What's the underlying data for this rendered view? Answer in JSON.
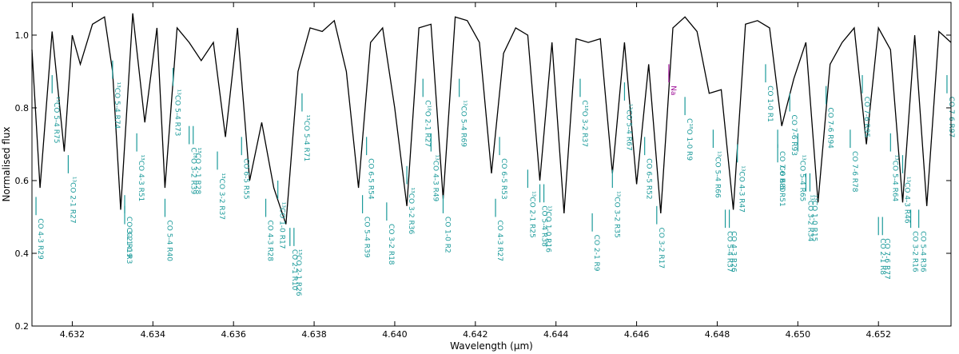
{
  "chart_data": {
    "type": "line",
    "xlabel": "Wavelength (μm)",
    "ylabel": "Normalised flux",
    "xlim": [
      4.631,
      4.6538
    ],
    "ylim": [
      0.2,
      1.09
    ],
    "xticks": [
      4.632,
      4.634,
      4.636,
      4.638,
      4.64,
      4.642,
      4.644,
      4.646,
      4.648,
      4.65,
      4.652
    ],
    "xtick_labels": [
      "4.632",
      "4.634",
      "4.636",
      "4.638",
      "4.640",
      "4.642",
      "4.644",
      "4.646",
      "4.648",
      "4.650",
      "4.652"
    ],
    "yticks": [
      0.2,
      0.4,
      0.6,
      0.8,
      1.0
    ],
    "ytick_labels": [
      "0.2",
      "0.4",
      "0.6",
      "0.8",
      "1.0"
    ],
    "colors": {
      "teal": "#1b9a9a",
      "magenta": "#a0149a",
      "spectrum": "#000000"
    },
    "series": [
      {
        "x": [
          4.631,
          4.6312,
          4.6315,
          4.6318,
          4.632,
          4.6322,
          4.6325,
          4.6328,
          4.633,
          4.6332,
          4.6335,
          4.6338,
          4.6341,
          4.6343,
          4.6346,
          4.6349,
          4.6352,
          4.6355,
          4.6358,
          4.6361,
          4.6364,
          4.6367,
          4.637,
          4.6373,
          4.6376,
          4.6379,
          4.6382,
          4.6385,
          4.6388,
          4.6391,
          4.6394,
          4.6397,
          4.64,
          4.6403,
          4.6406,
          4.6409,
          4.6412,
          4.6415,
          4.6418,
          4.6421,
          4.6424,
          4.6427,
          4.643,
          4.6433,
          4.6436,
          4.6439,
          4.6442,
          4.6445,
          4.6448,
          4.6451,
          4.6454,
          4.6457,
          4.646,
          4.6463,
          4.6466,
          4.6469,
          4.6472,
          4.6475,
          4.6478,
          4.6481,
          4.6484,
          4.6487,
          4.649,
          4.6493,
          4.6496,
          4.6499,
          4.6502,
          4.6505,
          4.6508,
          4.6511,
          4.6514,
          4.6517,
          4.652,
          4.6523,
          4.6526,
          4.6529,
          4.6532,
          4.6535,
          4.6538
        ],
        "y": [
          0.96,
          0.58,
          1.01,
          0.68,
          1.0,
          0.92,
          1.03,
          1.05,
          0.9,
          0.52,
          1.06,
          0.76,
          1.02,
          0.58,
          1.02,
          0.98,
          0.93,
          0.98,
          0.72,
          1.02,
          0.6,
          0.76,
          0.58,
          0.48,
          0.9,
          1.02,
          1.01,
          1.04,
          0.9,
          0.58,
          0.98,
          1.02,
          0.8,
          0.53,
          1.02,
          1.03,
          0.55,
          1.05,
          1.04,
          0.98,
          0.62,
          0.95,
          1.02,
          1.0,
          0.6,
          0.98,
          0.51,
          0.99,
          0.98,
          0.99,
          0.62,
          0.98,
          0.59,
          0.92,
          0.51,
          1.02,
          1.05,
          1.01,
          0.84,
          0.85,
          0.52,
          1.03,
          1.04,
          1.02,
          0.75,
          0.88,
          0.98,
          0.54,
          0.92,
          0.98,
          1.02,
          0.7,
          1.02,
          0.96,
          0.54,
          1.0,
          0.53,
          1.01,
          0.98
        ]
      }
    ],
    "annotations": [
      {
        "text": "CO 4-3 R29",
        "x": 4.6311,
        "y": 0.555,
        "color": "teal"
      },
      {
        "text": "¹³CO 5-4 R75",
        "x": 4.6315,
        "y": 0.89,
        "color": "teal"
      },
      {
        "text": "¹³CO 2-1 R27",
        "x": 4.6319,
        "y": 0.67,
        "color": "teal"
      },
      {
        "text": "¹³CO 5-4 R74",
        "x": 4.633,
        "y": 0.93,
        "color": "teal"
      },
      {
        "text": "CO 3-2 R19",
        "x": 4.6333,
        "y": 0.56,
        "color": "teal"
      },
      {
        "text": "CO 1-0 R3",
        "x": 4.6333,
        "y": 0.53,
        "color": "teal"
      },
      {
        "text": "¹³CO 4-3 R51",
        "x": 4.6336,
        "y": 0.73,
        "color": "teal"
      },
      {
        "text": "CO 5-4 R40",
        "x": 4.6343,
        "y": 0.55,
        "color": "teal"
      },
      {
        "text": "¹³CO 5-4 R73",
        "x": 4.6345,
        "y": 0.91,
        "color": "teal"
      },
      {
        "text": "C¹⁸O 3-2 R39",
        "x": 4.6349,
        "y": 0.75,
        "color": "teal"
      },
      {
        "text": "¹³CO 2-1 R28",
        "x": 4.635,
        "y": 0.75,
        "color": "teal"
      },
      {
        "text": "¹³CO 3-2 R37",
        "x": 4.6356,
        "y": 0.68,
        "color": "teal"
      },
      {
        "text": "CO 6-5 R55",
        "x": 4.6362,
        "y": 0.72,
        "color": "teal"
      },
      {
        "text": "CO 4-3 R28",
        "x": 4.6368,
        "y": 0.55,
        "color": "teal"
      },
      {
        "text": "¹³CO 1-0 R17",
        "x": 4.6371,
        "y": 0.6,
        "color": "teal"
      },
      {
        "text": "CO 2-1 R10",
        "x": 4.6374,
        "y": 0.47,
        "color": "teal"
      },
      {
        "text": "¹³CO 2-1 R26",
        "x": 4.6375,
        "y": 0.47,
        "color": "teal"
      },
      {
        "text": "¹³CO 5-4 R71",
        "x": 4.6377,
        "y": 0.84,
        "color": "teal"
      },
      {
        "text": "CO 5-4 R39",
        "x": 4.6392,
        "y": 0.56,
        "color": "teal"
      },
      {
        "text": "CO 6-5 R54",
        "x": 4.6393,
        "y": 0.72,
        "color": "teal"
      },
      {
        "text": "CO 3-2 R18",
        "x": 4.6398,
        "y": 0.54,
        "color": "teal"
      },
      {
        "text": "¹³CO 3-2 R36",
        "x": 4.6403,
        "y": 0.64,
        "color": "teal"
      },
      {
        "text": "C¹⁸O 2-1 R27",
        "x": 4.6407,
        "y": 0.88,
        "color": "teal"
      },
      {
        "text": "¹³CO 4-3 R49",
        "x": 4.6409,
        "y": 0.73,
        "color": "teal"
      },
      {
        "text": "CO 1-0 R2",
        "x": 4.6412,
        "y": 0.56,
        "color": "teal"
      },
      {
        "text": "¹³CO 5-4 R69",
        "x": 4.6416,
        "y": 0.88,
        "color": "teal"
      },
      {
        "text": "CO 4-3 R27",
        "x": 4.6425,
        "y": 0.55,
        "color": "teal"
      },
      {
        "text": "CO 6-5 R53",
        "x": 4.6426,
        "y": 0.72,
        "color": "teal"
      },
      {
        "text": "¹³CO 2-1 R25",
        "x": 4.6433,
        "y": 0.63,
        "color": "teal"
      },
      {
        "text": "CO 5-4 R38",
        "x": 4.6436,
        "y": 0.59,
        "color": "teal"
      },
      {
        "text": "¹³CO 1-0 R16",
        "x": 4.6437,
        "y": 0.59,
        "color": "teal"
      },
      {
        "text": "C¹⁸O 3-2 R37",
        "x": 4.6446,
        "y": 0.88,
        "color": "teal"
      },
      {
        "text": "CO 2-1 R9",
        "x": 4.6449,
        "y": 0.51,
        "color": "teal"
      },
      {
        "text": "¹³CO 3-2 R35",
        "x": 4.6454,
        "y": 0.63,
        "color": "teal"
      },
      {
        "text": "¹³CO 5-4 R67",
        "x": 4.6457,
        "y": 0.87,
        "color": "teal"
      },
      {
        "text": "CO 6-5 R52",
        "x": 4.6462,
        "y": 0.72,
        "color": "teal"
      },
      {
        "text": "CO 3-2 R17",
        "x": 4.6465,
        "y": 0.53,
        "color": "teal"
      },
      {
        "text": "Na",
        "x": 4.6468,
        "y": 0.92,
        "color": "magenta"
      },
      {
        "text": "C¹⁸O 1-0 R9",
        "x": 4.6472,
        "y": 0.83,
        "color": "teal"
      },
      {
        "text": "¹³CO 5-4 R66",
        "x": 4.6479,
        "y": 0.74,
        "color": "teal"
      },
      {
        "text": "CO 5-4 R37",
        "x": 4.6482,
        "y": 0.52,
        "color": "teal"
      },
      {
        "text": "CO 4-3 R26",
        "x": 4.6483,
        "y": 0.52,
        "color": "teal"
      },
      {
        "text": "¹³CO 4-3 R47",
        "x": 4.6485,
        "y": 0.7,
        "color": "teal"
      },
      {
        "text": "CO 1-0 R1",
        "x": 4.6492,
        "y": 0.92,
        "color": "teal"
      },
      {
        "text": "CO 7-6 R80",
        "x": 4.6495,
        "y": 0.74,
        "color": "teal"
      },
      {
        "text": "CO 6-5 R51",
        "x": 4.6495,
        "y": 0.7,
        "color": "teal"
      },
      {
        "text": "CO 7-6 R93",
        "x": 4.6498,
        "y": 0.84,
        "color": "teal"
      },
      {
        "text": "¹³CO 5-4 R65",
        "x": 4.65,
        "y": 0.73,
        "color": "teal"
      },
      {
        "text": "¹³CO 3-2 R34",
        "x": 4.6502,
        "y": 0.62,
        "color": "teal"
      },
      {
        "text": "¹³CO 1-0 R15",
        "x": 4.6503,
        "y": 0.62,
        "color": "teal"
      },
      {
        "text": "CO 7-6 R94",
        "x": 4.6507,
        "y": 0.86,
        "color": "teal"
      },
      {
        "text": "CO 7-6 R78",
        "x": 4.6513,
        "y": 0.74,
        "color": "teal"
      },
      {
        "text": "CO 7-6 R95",
        "x": 4.6516,
        "y": 0.89,
        "color": "teal"
      },
      {
        "text": "CO 2-1 R8",
        "x": 4.652,
        "y": 0.5,
        "color": "teal"
      },
      {
        "text": "CO 7-6 R77",
        "x": 4.6521,
        "y": 0.5,
        "color": "teal"
      },
      {
        "text": "¹³CO 5-4 R64",
        "x": 4.6523,
        "y": 0.73,
        "color": "teal"
      },
      {
        "text": "¹³CO 4-3 R46",
        "x": 4.6526,
        "y": 0.67,
        "color": "teal"
      },
      {
        "text": "CO 3-2 R16",
        "x": 4.6528,
        "y": 0.52,
        "color": "teal"
      },
      {
        "text": "CO 5-4 R36",
        "x": 4.653,
        "y": 0.52,
        "color": "teal"
      },
      {
        "text": "CO 7-6 R97",
        "x": 4.6537,
        "y": 0.89,
        "color": "teal"
      }
    ]
  }
}
